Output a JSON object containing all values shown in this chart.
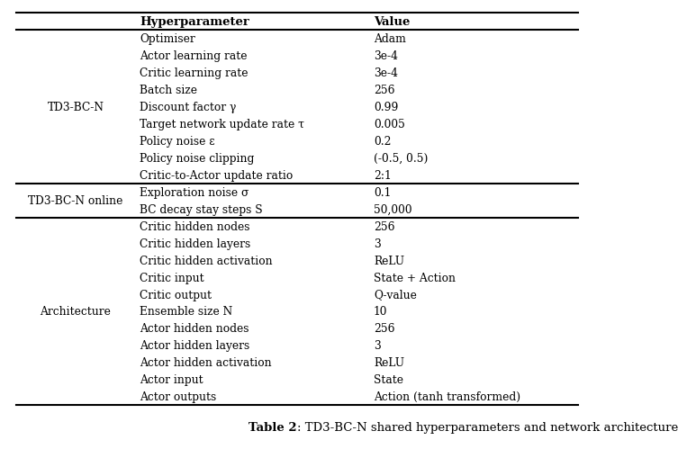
{
  "caption_bold": "Table 2",
  "caption_normal": ": TD3-BC-N shared hyperparameters and network architecture",
  "col_headers": [
    "",
    "Hyperparameter",
    "Value"
  ],
  "sections": [
    {
      "group_label": "TD3-BC-N",
      "rows": [
        [
          "Optimiser",
          "Adam"
        ],
        [
          "Actor learning rate",
          "3e-4"
        ],
        [
          "Critic learning rate",
          "3e-4"
        ],
        [
          "Batch size",
          "256"
        ],
        [
          "Discount factor γ",
          "0.99"
        ],
        [
          "Target network update rate τ",
          "0.005"
        ],
        [
          "Policy noise ε",
          "0.2"
        ],
        [
          "Policy noise clipping",
          "(-0.5, 0.5)"
        ],
        [
          "Critic-to-Actor update ratio",
          "2:1"
        ]
      ]
    },
    {
      "group_label": "TD3-BC-N online",
      "rows": [
        [
          "Exploration noise σ",
          "0.1"
        ],
        [
          "BC decay stay steps S",
          "50,000"
        ]
      ]
    },
    {
      "group_label": "Architecture",
      "rows": [
        [
          "Critic hidden nodes",
          "256"
        ],
        [
          "Critic hidden layers",
          "3"
        ],
        [
          "Critic hidden activation",
          "ReLU"
        ],
        [
          "Critic input",
          "State + Action"
        ],
        [
          "Critic output",
          "Q-value"
        ],
        [
          "Ensemble size N",
          "10"
        ],
        [
          "Actor hidden nodes",
          "256"
        ],
        [
          "Actor hidden layers",
          "3"
        ],
        [
          "Actor hidden activation",
          "ReLU"
        ],
        [
          "Actor input",
          "State"
        ],
        [
          "Actor outputs",
          "Action (tanh transformed)"
        ]
      ]
    }
  ],
  "bg_color": "#ffffff",
  "line_color": "#000000",
  "header_fontsize": 9.5,
  "body_fontsize": 8.8,
  "caption_fontsize": 9.5,
  "lw_thick": 1.5
}
